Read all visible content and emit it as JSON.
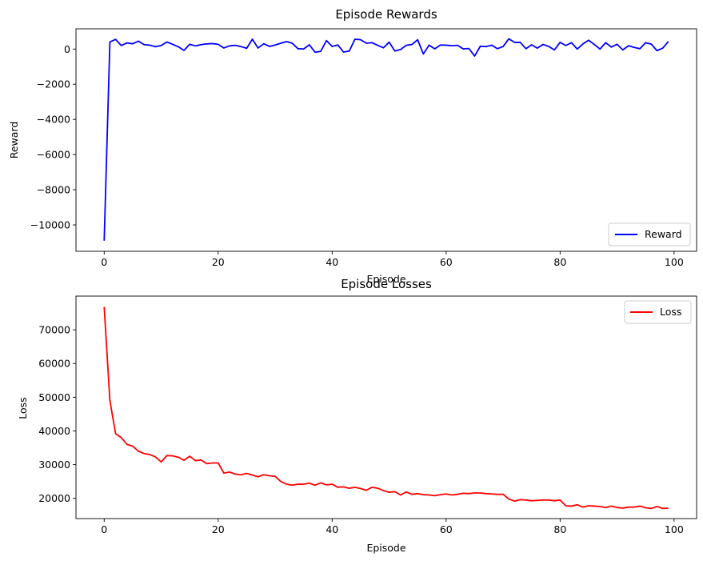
{
  "chart_data": [
    {
      "type": "line",
      "title": "Episode Rewards",
      "xlabel": "Episode",
      "ylabel": "Reward",
      "xlim": [
        -4.95,
        103.95
      ],
      "ylim": [
        -11500,
        1150
      ],
      "xticks": [
        0,
        20,
        40,
        60,
        80,
        100
      ],
      "yticks": [
        -10000,
        -8000,
        -6000,
        -4000,
        -2000,
        0
      ],
      "legend": "lower right",
      "series": [
        {
          "name": "Reward",
          "color": "#0000ff",
          "x": [
            0,
            1,
            2,
            3,
            4,
            5,
            6,
            7,
            8,
            9,
            10,
            11,
            12,
            13,
            14,
            15,
            16,
            17,
            18,
            19,
            20,
            21,
            22,
            23,
            24,
            25,
            26,
            27,
            28,
            29,
            30,
            31,
            32,
            33,
            34,
            35,
            36,
            37,
            38,
            39,
            40,
            41,
            42,
            43,
            44,
            45,
            46,
            47,
            48,
            49,
            50,
            51,
            52,
            53,
            54,
            55,
            56,
            57,
            58,
            59,
            60,
            61,
            62,
            63,
            64,
            65,
            66,
            67,
            68,
            69,
            70,
            71,
            72,
            73,
            74,
            75,
            76,
            77,
            78,
            79,
            80,
            81,
            82,
            83,
            84,
            85,
            86,
            87,
            88,
            89,
            90,
            91,
            92,
            93,
            94,
            95,
            96,
            97,
            98,
            99
          ],
          "y": [
            -10900,
            400,
            550,
            200,
            350,
            300,
            450,
            250,
            220,
            130,
            200,
            400,
            270,
            130,
            -80,
            270,
            180,
            250,
            290,
            310,
            270,
            60,
            180,
            210,
            140,
            40,
            560,
            60,
            300,
            150,
            230,
            330,
            420,
            330,
            20,
            0,
            240,
            -180,
            -130,
            480,
            150,
            230,
            -170,
            -120,
            560,
            530,
            330,
            360,
            210,
            70,
            390,
            -110,
            -30,
            210,
            260,
            530,
            -280,
            220,
            10,
            230,
            220,
            190,
            210,
            10,
            30,
            -400,
            160,
            140,
            220,
            20,
            140,
            580,
            380,
            380,
            20,
            240,
            50,
            260,
            150,
            -50,
            380,
            200,
            360,
            0,
            290,
            500,
            260,
            0,
            360,
            110,
            270,
            -50,
            190,
            90,
            20,
            360,
            280,
            -90,
            50,
            430
          ]
        }
      ]
    },
    {
      "type": "line",
      "title": "Episode Losses",
      "xlabel": "Episode",
      "ylabel": "Loss",
      "xlim": [
        -4.95,
        103.95
      ],
      "ylim": [
        14000,
        80000
      ],
      "xticks": [
        0,
        20,
        40,
        60,
        80,
        100
      ],
      "yticks": [
        20000,
        30000,
        40000,
        50000,
        60000,
        70000
      ],
      "legend": "upper right",
      "series": [
        {
          "name": "Loss",
          "color": "#ff0000",
          "x": [
            0,
            1,
            2,
            3,
            4,
            5,
            6,
            7,
            8,
            9,
            10,
            11,
            12,
            13,
            14,
            15,
            16,
            17,
            18,
            19,
            20,
            21,
            22,
            23,
            24,
            25,
            26,
            27,
            28,
            29,
            30,
            31,
            32,
            33,
            34,
            35,
            36,
            37,
            38,
            39,
            40,
            41,
            42,
            43,
            44,
            45,
            46,
            47,
            48,
            49,
            50,
            51,
            52,
            53,
            54,
            55,
            56,
            57,
            58,
            59,
            60,
            61,
            62,
            63,
            64,
            65,
            66,
            67,
            68,
            69,
            70,
            71,
            72,
            73,
            74,
            75,
            76,
            77,
            78,
            79,
            80,
            81,
            82,
            83,
            84,
            85,
            86,
            87,
            88,
            89,
            90,
            91,
            92,
            93,
            94,
            95,
            96,
            97,
            98,
            99
          ],
          "y": [
            76800,
            49000,
            39200,
            38000,
            36000,
            35500,
            34000,
            33300,
            33000,
            32300,
            30800,
            32700,
            32600,
            32200,
            31300,
            32500,
            31200,
            31400,
            30300,
            30500,
            30500,
            27500,
            27800,
            27200,
            27000,
            27400,
            26900,
            26400,
            27000,
            26700,
            26500,
            25000,
            24200,
            23900,
            24200,
            24200,
            24500,
            23900,
            24600,
            24000,
            24200,
            23300,
            23400,
            23000,
            23300,
            22900,
            22400,
            23300,
            23000,
            22300,
            21800,
            22000,
            21000,
            21900,
            21200,
            21400,
            21100,
            21000,
            20800,
            21100,
            21300,
            21000,
            21200,
            21500,
            21400,
            21600,
            21600,
            21400,
            21300,
            21200,
            21200,
            19800,
            19200,
            19600,
            19500,
            19300,
            19400,
            19500,
            19500,
            19300,
            19500,
            17800,
            17700,
            18100,
            17400,
            17800,
            17700,
            17600,
            17300,
            17700,
            17300,
            17100,
            17400,
            17400,
            17700,
            17200,
            17000,
            17600,
            17000,
            17100
          ]
        }
      ]
    }
  ]
}
